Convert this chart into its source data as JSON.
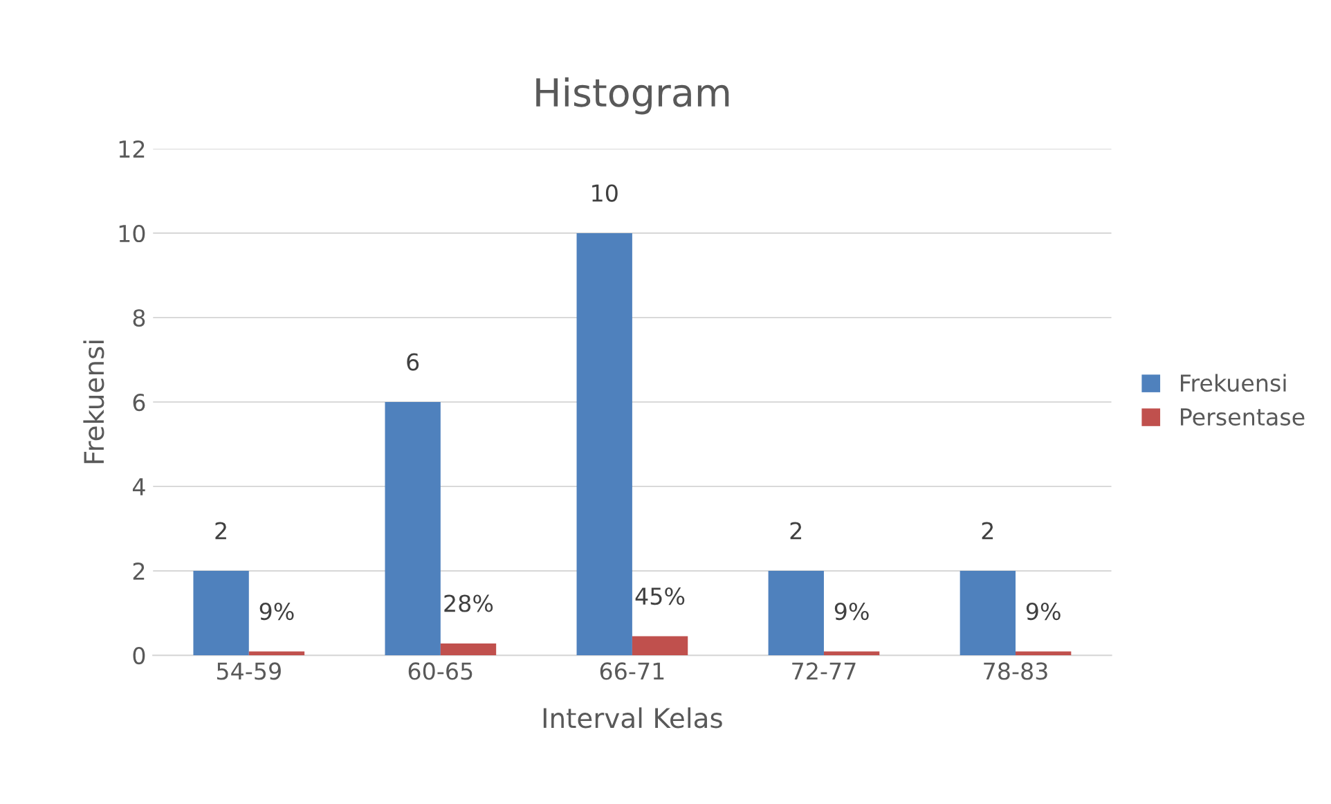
{
  "chart_data": {
    "type": "bar",
    "title": "Histogram",
    "xlabel": "Interval Kelas",
    "ylabel": "Frekuensi",
    "categories": [
      "54-59",
      "60-65",
      "66-71",
      "72-77",
      "78-83"
    ],
    "series": [
      {
        "name": "Frekuensi",
        "color": "#4f81bd",
        "values": [
          2,
          6,
          10,
          2,
          2
        ],
        "value_labels": [
          "2",
          "6",
          "10",
          "2",
          "2"
        ]
      },
      {
        "name": "Persentase",
        "color": "#c0504d",
        "values": [
          0.09,
          0.28,
          0.45,
          0.09,
          0.09
        ],
        "value_labels": [
          "9%",
          "28%",
          "45%",
          "9%",
          "9%"
        ]
      }
    ],
    "ylim": [
      0,
      12
    ],
    "yticks": [
      0,
      2,
      4,
      6,
      8,
      10,
      12
    ],
    "grid": "y",
    "legend": "right"
  }
}
